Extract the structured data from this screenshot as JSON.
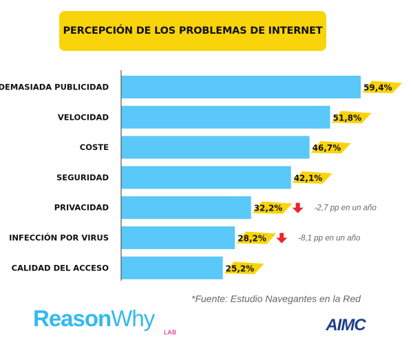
{
  "title": "PERCEPCIÓN DE LOS PROBLEMAS DE INTERNET",
  "source": "*Fuente: Estudio Navegantes en la Red",
  "logos": {
    "reasonwhy_bold": "Reason",
    "reasonwhy_light": "Why",
    "reasonwhy_sub": "LAB",
    "aimc": "AIMC"
  },
  "colors": {
    "bar": "#5ac8f8",
    "accent": "#f9d40b",
    "down_arrow": "#e8262b"
  },
  "chart_data": {
    "type": "bar",
    "orientation": "horizontal",
    "title": "PERCEPCIÓN DE LOS PROBLEMAS DE INTERNET",
    "categories": [
      "DEMASIADA PUBLICIDAD",
      "VELOCIDAD",
      "COSTE",
      "SEGURIDAD",
      "PRIVACIDAD",
      "INFECCIÓN POR VIRUS",
      "CALIDAD DEL ACCESO"
    ],
    "values": [
      59.4,
      51.8,
      46.7,
      42.1,
      32.2,
      28.2,
      25.2
    ],
    "value_labels": [
      "59,4%",
      "51,8%",
      "46,7%",
      "42,1%",
      "32,2%",
      "28,2%",
      "25,2%"
    ],
    "annotations": [
      {
        "category": "PRIVACIDAD",
        "text": "-2,7 pp en un año",
        "icon": "down-arrow-icon"
      },
      {
        "category": "INFECCIÓN POR VIRUS",
        "text": "-8,1 pp en un año",
        "icon": "down-arrow-icon"
      }
    ],
    "xlabel": "",
    "ylabel": "",
    "grid": false,
    "legend": "none"
  }
}
